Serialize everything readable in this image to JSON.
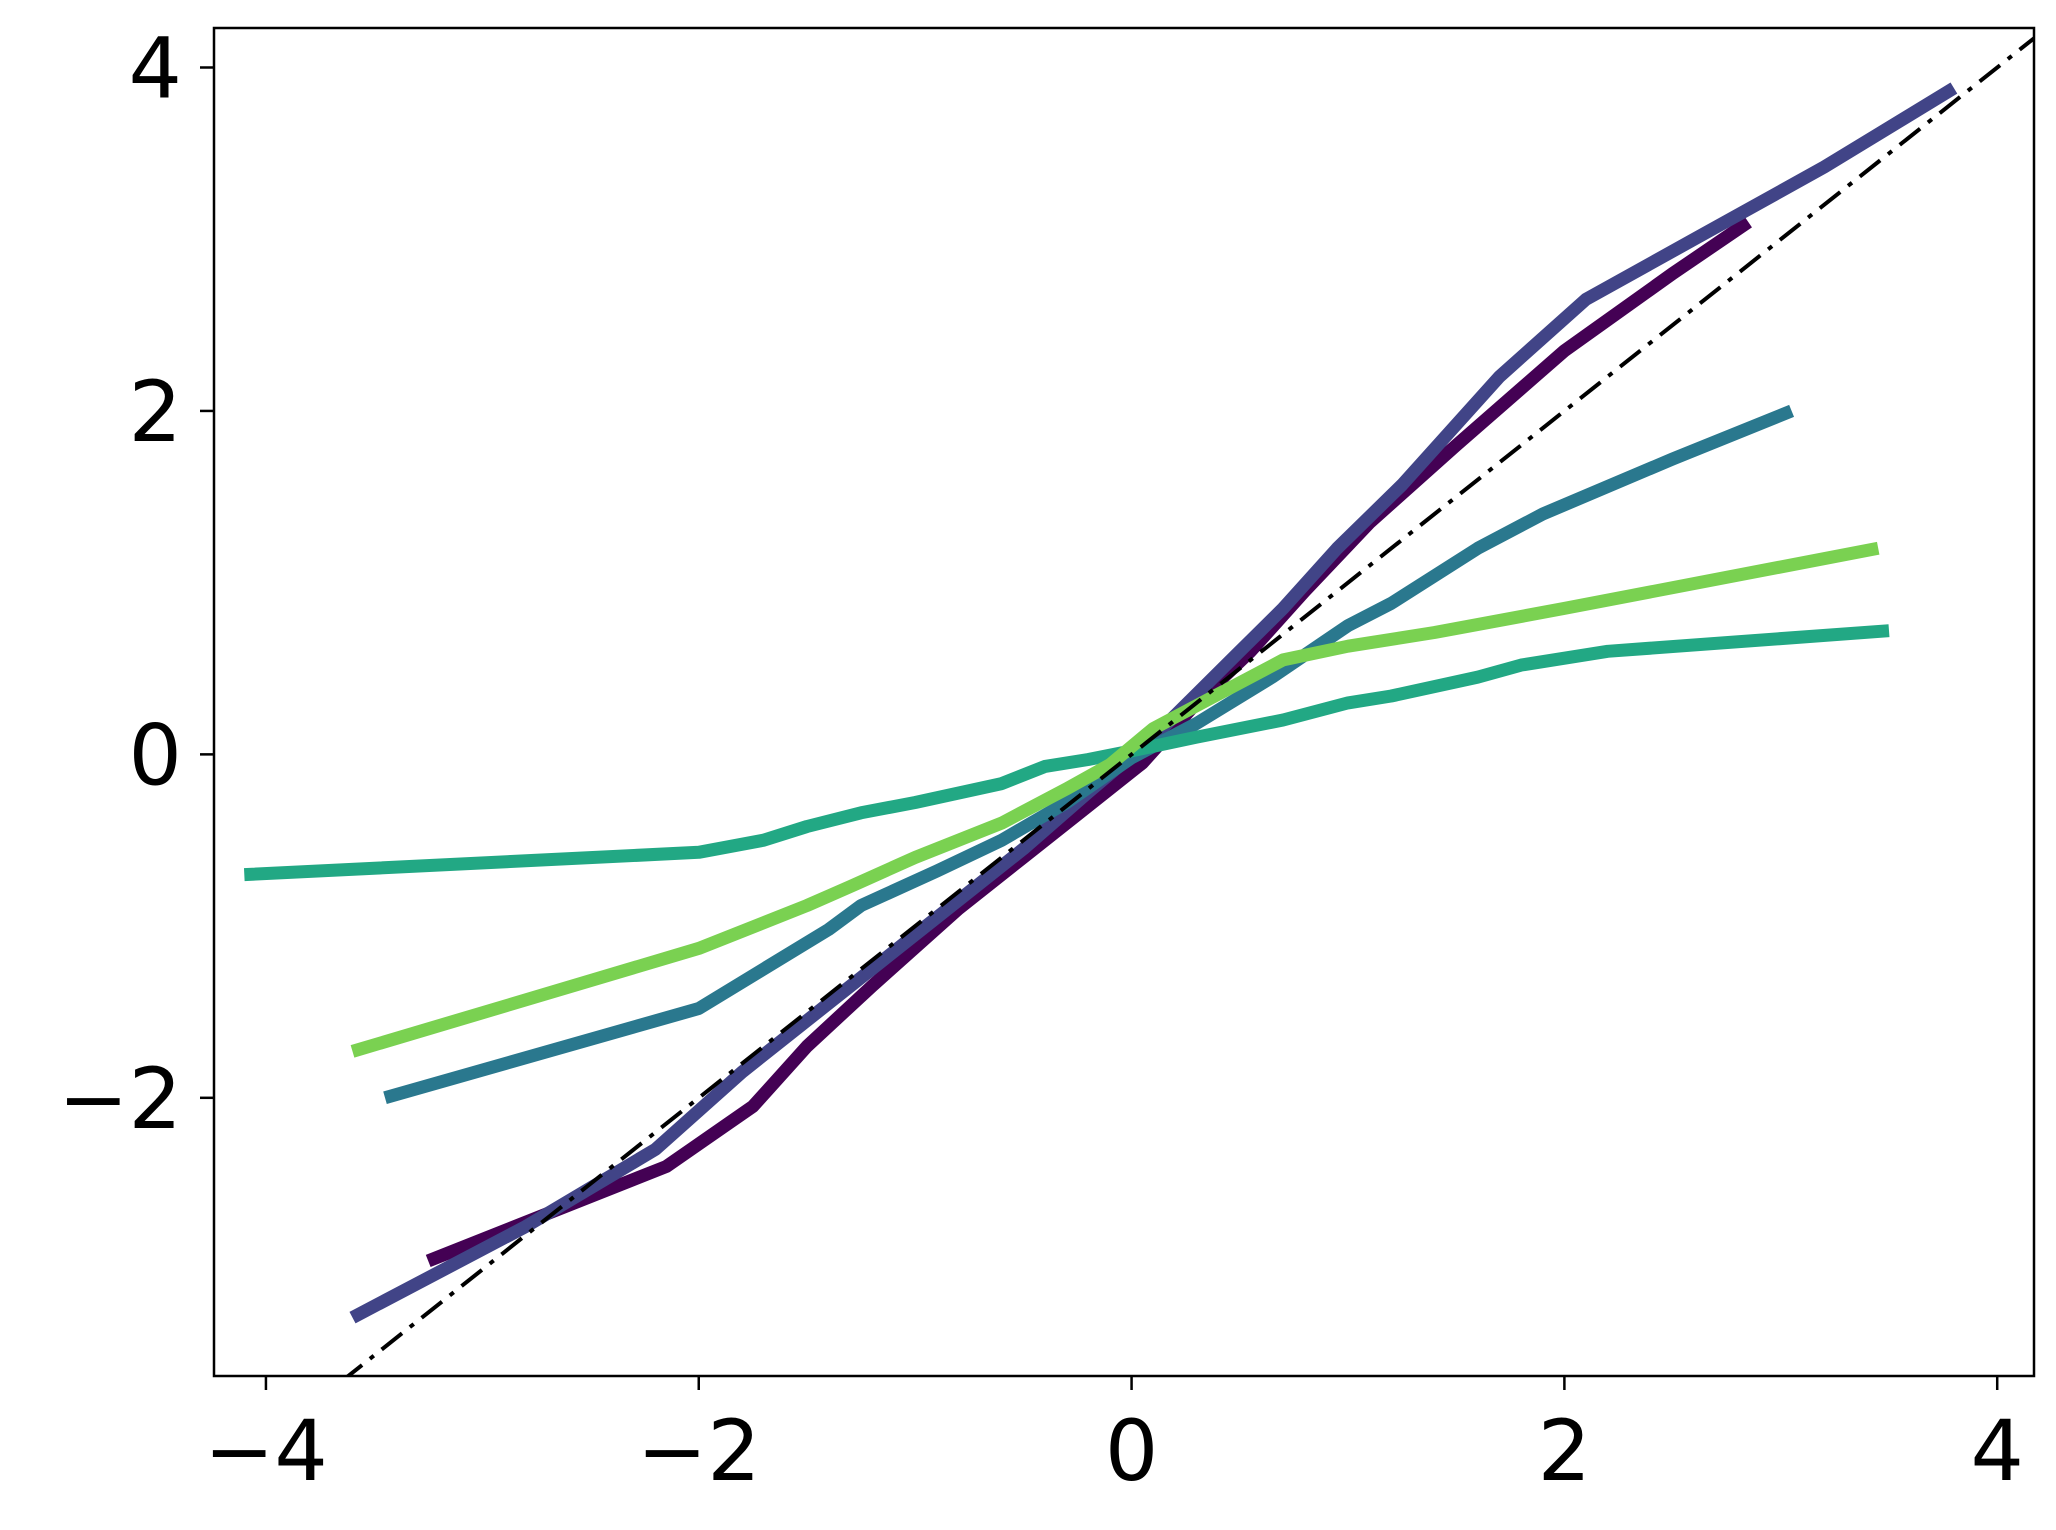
{
  "chart_data": {
    "type": "line",
    "title": "",
    "xlabel": "",
    "ylabel": "",
    "xlim": [
      -4.24,
      4.17
    ],
    "ylim": [
      -3.62,
      4.23
    ],
    "xticks": [
      -4,
      -2,
      0,
      2,
      4
    ],
    "yticks": [
      -2,
      0,
      2,
      4
    ],
    "xtick_labels": [
      "−4",
      "−2",
      "0",
      "2",
      "4"
    ],
    "ytick_labels": [
      "−2",
      "0",
      "2",
      "4"
    ],
    "grid": false,
    "legend": "none",
    "series": [
      {
        "color": "#440154",
        "x": [
          -3.25,
          -2.15,
          -1.75,
          -1.5,
          -1.2,
          -0.8,
          -0.5,
          -0.25,
          0.05,
          0.3,
          0.55,
          0.8,
          1.1,
          1.5,
          2.0,
          2.5,
          2.85
        ],
        "y": [
          -2.95,
          -2.4,
          -2.05,
          -1.7,
          -1.35,
          -0.9,
          -0.6,
          -0.35,
          -0.05,
          0.3,
          0.6,
          0.95,
          1.35,
          1.8,
          2.35,
          2.8,
          3.1
        ]
      },
      {
        "color": "#414487",
        "x": [
          -3.6,
          -2.8,
          -2.2,
          -1.8,
          -1.4,
          -0.9,
          -0.5,
          -0.2,
          0.1,
          0.5,
          0.7,
          0.95,
          1.25,
          1.7,
          2.1,
          2.6,
          3.2,
          3.8
        ],
        "y": [
          -3.28,
          -2.75,
          -2.3,
          -1.85,
          -1.45,
          -0.95,
          -0.55,
          -0.22,
          0.1,
          0.6,
          0.85,
          1.2,
          1.57,
          2.2,
          2.65,
          3.0,
          3.42,
          3.88
        ]
      },
      {
        "color": "#2a788e",
        "x": [
          -3.45,
          -2.0,
          -1.4,
          -1.25,
          -0.9,
          -0.6,
          -0.3,
          0.0,
          0.3,
          0.65,
          1.0,
          1.2,
          1.6,
          1.9,
          2.5,
          3.05
        ],
        "y": [
          -2.0,
          -1.48,
          -1.02,
          -0.88,
          -0.68,
          -0.5,
          -0.28,
          -0.02,
          0.18,
          0.45,
          0.75,
          0.88,
          1.2,
          1.4,
          1.72,
          2.0
        ]
      },
      {
        "color": "#22a884",
        "x": [
          -4.1,
          -2.0,
          -1.7,
          -1.5,
          -1.25,
          -1.0,
          -0.6,
          -0.4,
          -0.2,
          0.0,
          0.3,
          0.7,
          1.0,
          1.2,
          1.6,
          1.8,
          2.2,
          3.5
        ],
        "y": [
          -0.7,
          -0.57,
          -0.5,
          -0.42,
          -0.34,
          -0.28,
          -0.17,
          -0.07,
          -0.03,
          0.02,
          0.1,
          0.2,
          0.3,
          0.34,
          0.45,
          0.52,
          0.6,
          0.72
        ]
      },
      {
        "color": "#7ad151",
        "x": [
          -3.6,
          -2.0,
          -1.5,
          -1.3,
          -1.0,
          -0.6,
          -0.3,
          -0.1,
          0.1,
          0.4,
          0.7,
          1.0,
          1.4,
          2.0,
          3.45
        ],
        "y": [
          -1.73,
          -1.13,
          -0.88,
          -0.77,
          -0.6,
          -0.4,
          -0.2,
          -0.06,
          0.15,
          0.35,
          0.55,
          0.63,
          0.71,
          0.85,
          1.2
        ]
      },
      {
        "color": "#000000",
        "dash": "dashdot",
        "x": [
          -3.65,
          4.17
        ],
        "y": [
          -3.65,
          4.17
        ]
      }
    ]
  }
}
